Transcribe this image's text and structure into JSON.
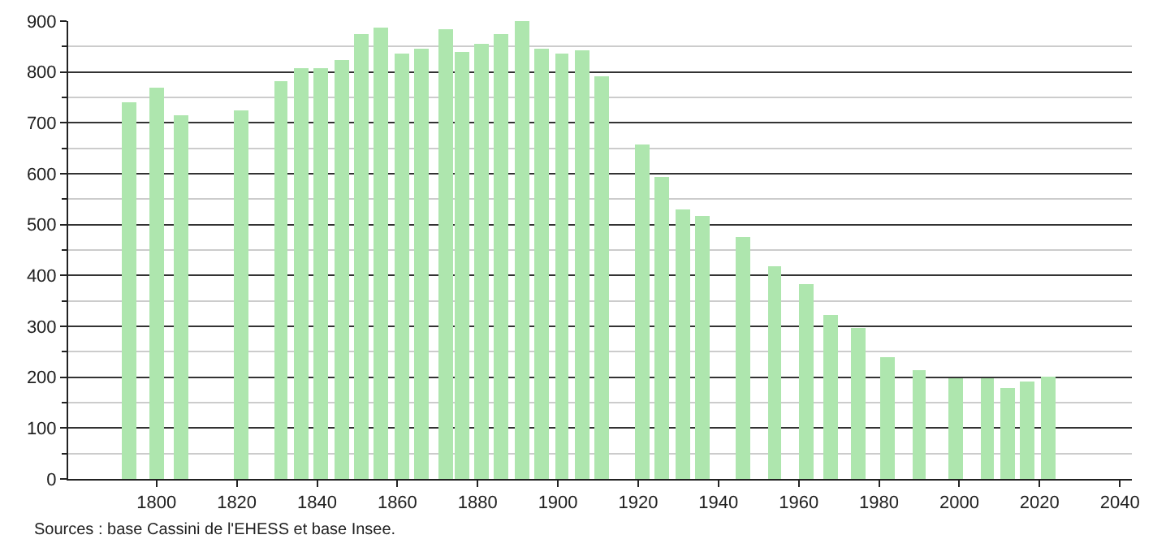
{
  "chart_data": {
    "type": "bar",
    "x": [
      1793,
      1800,
      1806,
      1821,
      1831,
      1836,
      1841,
      1846,
      1851,
      1856,
      1861,
      1866,
      1872,
      1876,
      1881,
      1886,
      1891,
      1896,
      1901,
      1906,
      1911,
      1921,
      1926,
      1931,
      1936,
      1946,
      1954,
      1962,
      1968,
      1975,
      1982,
      1990,
      1999,
      2007,
      2012,
      2017,
      2022
    ],
    "values": [
      740,
      768,
      715,
      724,
      781,
      809,
      806,
      824,
      873,
      887,
      837,
      847,
      883,
      840,
      855,
      873,
      900,
      846,
      837,
      842,
      793,
      658,
      593,
      531,
      518,
      474,
      417,
      382,
      323,
      298,
      238,
      215,
      199,
      197,
      179,
      193,
      201
    ],
    "color": "#aee6ae",
    "xlim": [
      1778,
      2043
    ],
    "xticks": [
      1800,
      1820,
      1840,
      1860,
      1880,
      1900,
      1920,
      1940,
      1960,
      1980,
      2000,
      2020,
      2040
    ],
    "ylim": [
      0,
      900
    ],
    "yticks": [
      0,
      100,
      200,
      300,
      400,
      500,
      600,
      700,
      800,
      900
    ],
    "grid": "y",
    "annotations": [
      "Sources : base Cassini de l'EHESS et base Insee."
    ]
  }
}
